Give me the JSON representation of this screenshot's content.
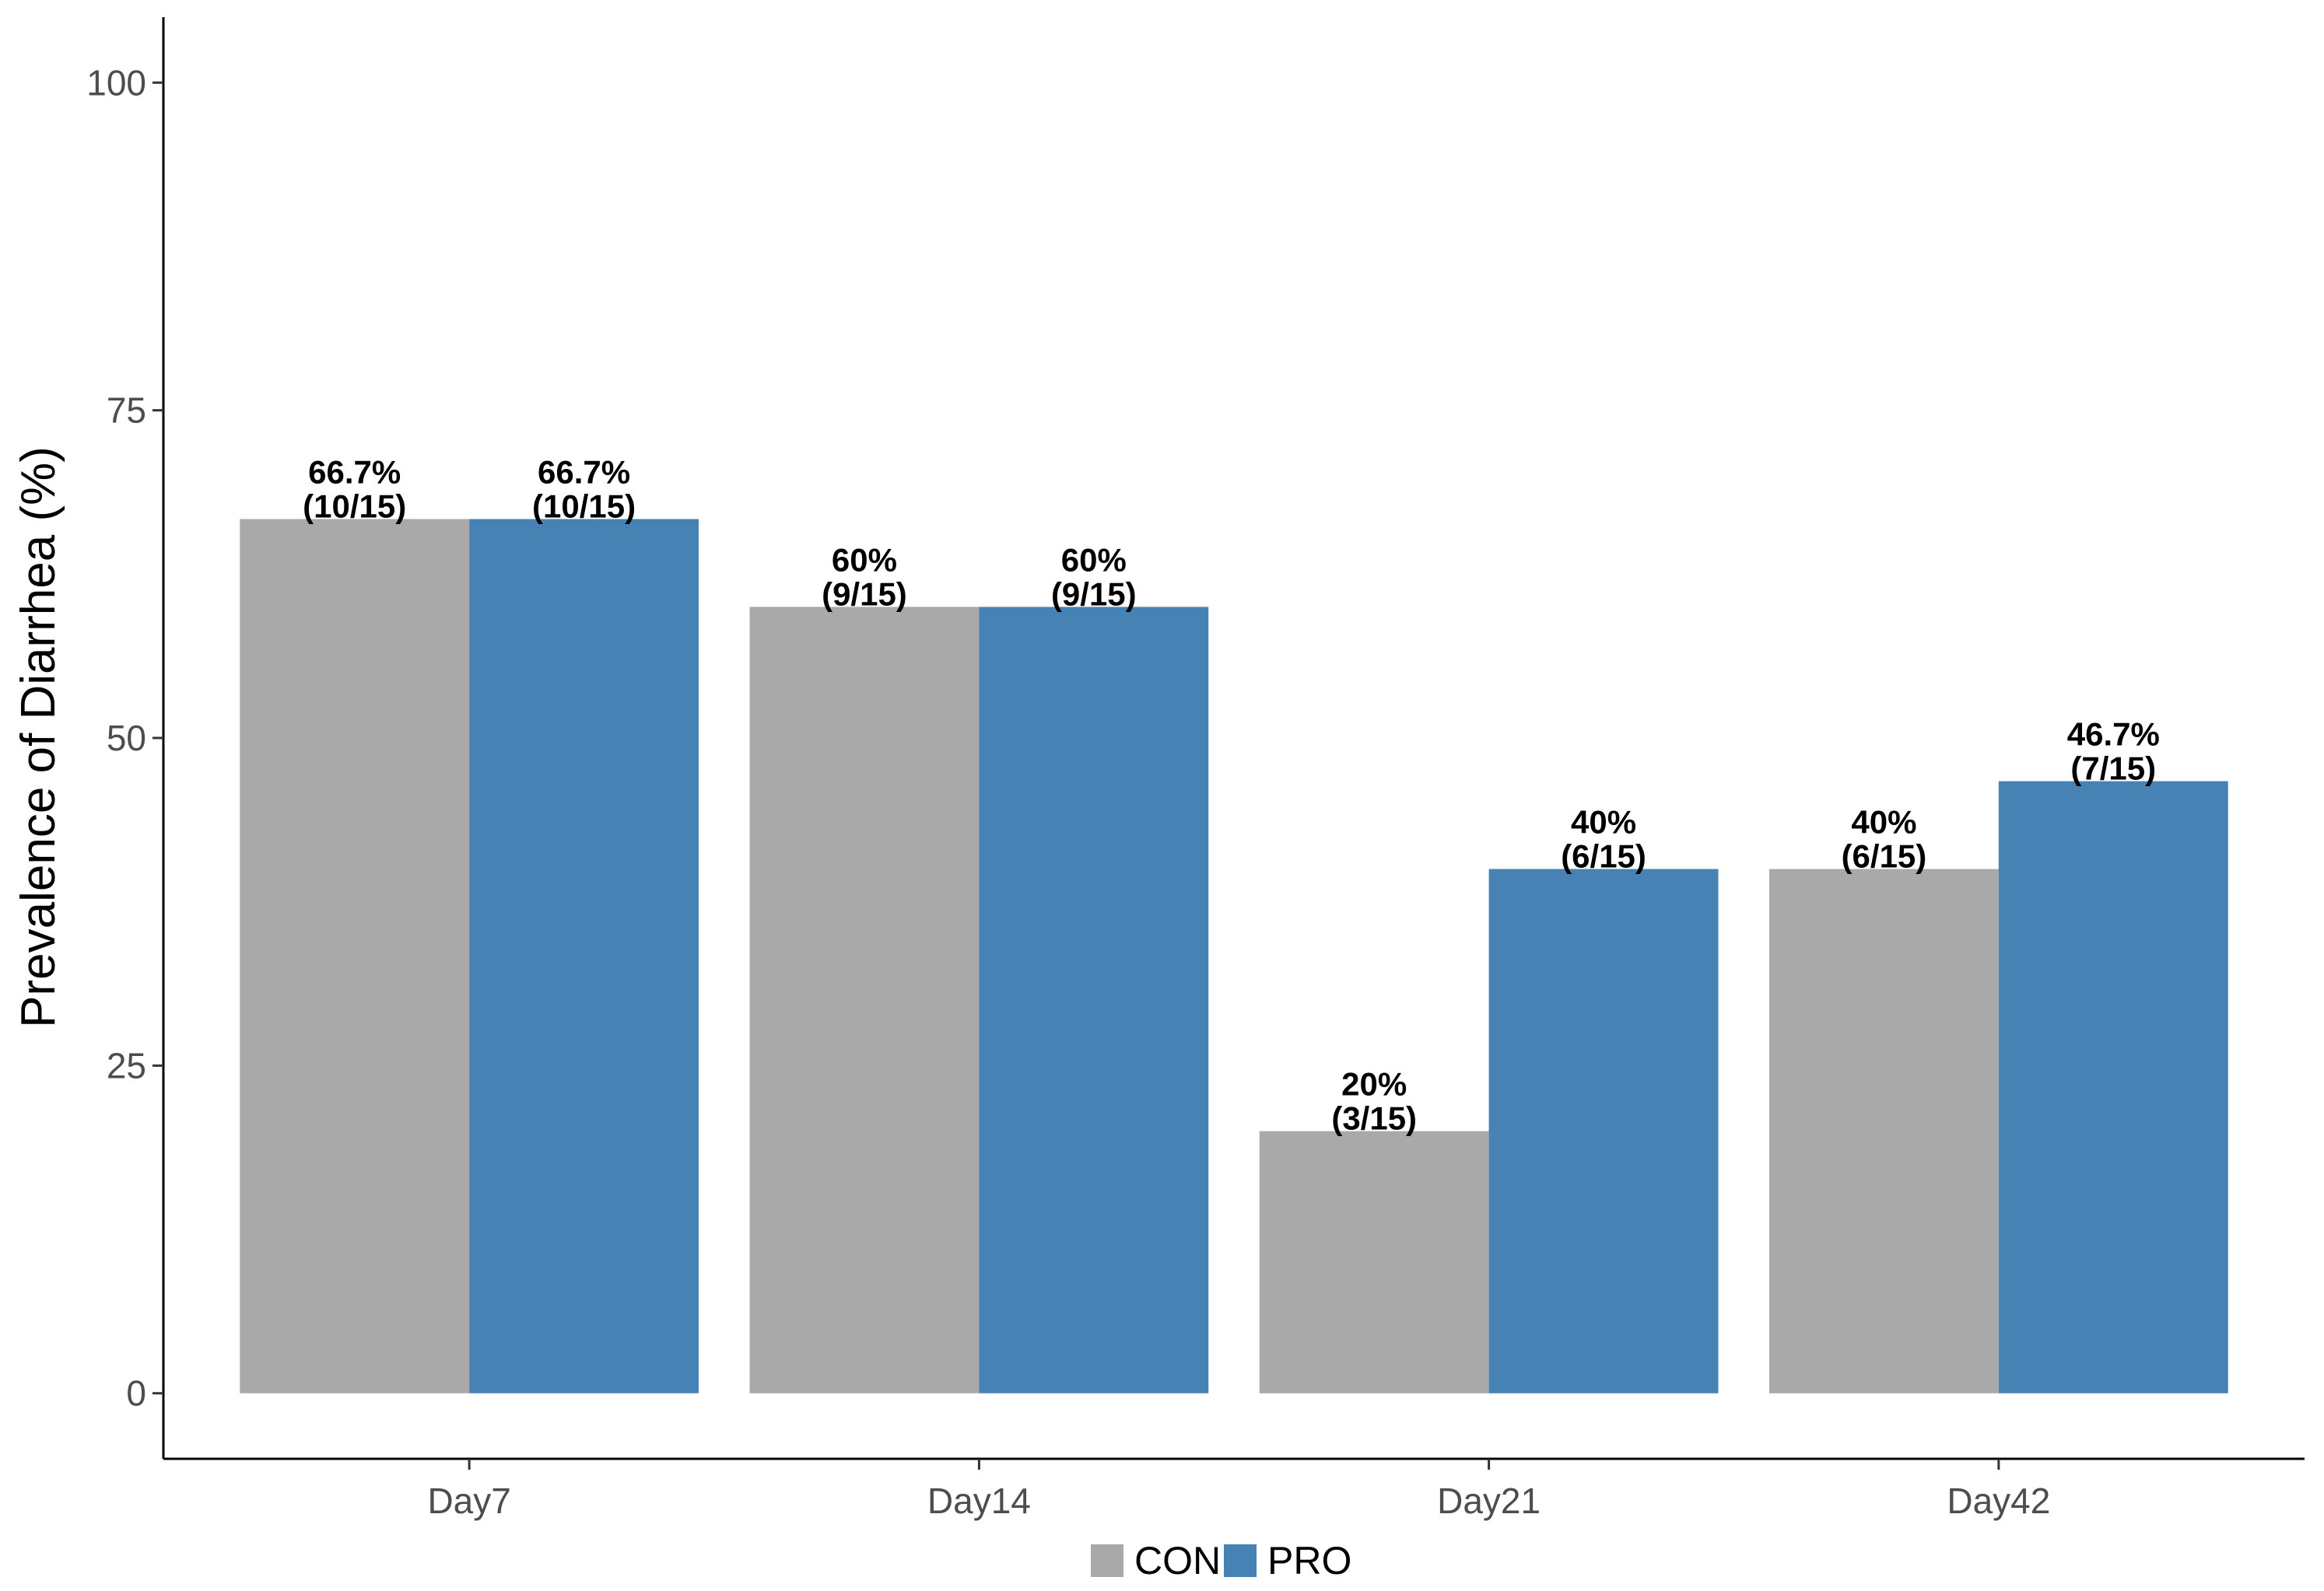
{
  "chart_data": {
    "type": "bar",
    "title": "",
    "xlabel": "",
    "ylabel": "Prevalence of Diarrhea (%)",
    "ylim": [
      -5,
      105
    ],
    "yticks": [
      0,
      25,
      50,
      75,
      100
    ],
    "yticks_labels": [
      "0",
      "25",
      "50",
      "75",
      "100"
    ],
    "categories": [
      "Day7",
      "Day14",
      "Day21",
      "Day42"
    ],
    "series": [
      {
        "name": "CON",
        "color": "#a9a9a9",
        "values": [
          66.7,
          60,
          20,
          40
        ],
        "labels": [
          [
            "66.7%",
            "(10/15)"
          ],
          [
            "60%",
            "(9/15)"
          ],
          [
            "20%",
            "(3/15)"
          ],
          [
            "40%",
            "(6/15)"
          ]
        ]
      },
      {
        "name": "PRO",
        "color": "#4682b4",
        "values": [
          66.7,
          60,
          40,
          46.7
        ],
        "labels": [
          [
            "66.7%",
            "(10/15)"
          ],
          [
            "60%",
            "(9/15)"
          ],
          [
            "40%",
            "(6/15)"
          ],
          [
            "46.7%",
            "(7/15)"
          ]
        ]
      }
    ],
    "grid": false,
    "legend_position": "bottom"
  }
}
